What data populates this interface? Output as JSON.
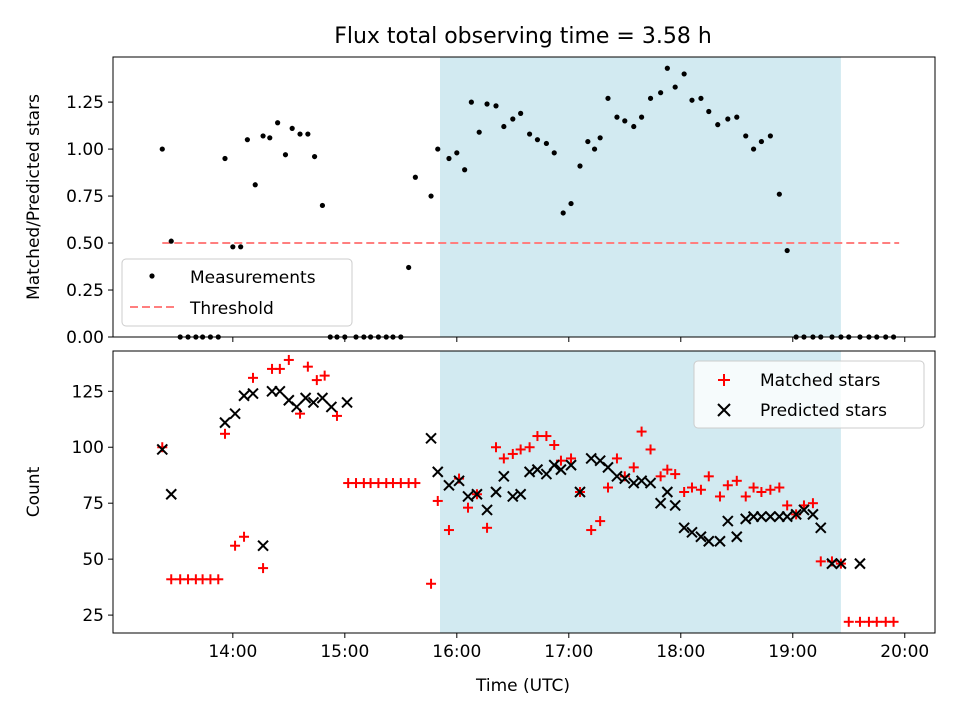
{
  "title": "Flux total observing time = 3.58 h",
  "highlight_window": {
    "start": 15.85,
    "end": 19.43,
    "color": "#add8e6"
  },
  "chart_data": [
    {
      "type": "scatter",
      "ylabel": "Matched/Predicted stars",
      "xlim": [
        12.93,
        20.27
      ],
      "ylim": [
        0.0,
        1.49
      ],
      "yticks": [
        0.0,
        0.25,
        0.5,
        0.75,
        1.0,
        1.25
      ],
      "ytick_labels": [
        "0.00",
        "0.25",
        "0.50",
        "0.75",
        "1.00",
        "1.25"
      ],
      "legend": {
        "position": "lower-left",
        "entries": [
          "Measurements",
          "Threshold"
        ]
      },
      "threshold": {
        "name": "Threshold",
        "value": 0.5,
        "x_range": [
          13.37,
          19.95
        ],
        "color": "#ff7f7f",
        "style": "dashed"
      },
      "series": [
        {
          "name": "Measurements",
          "marker": "dot",
          "color": "#000000",
          "x": [
            13.37,
            13.45,
            13.53,
            13.6,
            13.67,
            13.73,
            13.8,
            13.87,
            13.93,
            14.0,
            14.07,
            14.13,
            14.2,
            14.27,
            14.33,
            14.4,
            14.47,
            14.53,
            14.6,
            14.67,
            14.73,
            14.8,
            14.87,
            14.93,
            15.0,
            15.1,
            15.17,
            15.23,
            15.3,
            15.37,
            15.43,
            15.5,
            15.57,
            15.63,
            15.77,
            15.83,
            15.93,
            16.0,
            16.07,
            16.13,
            16.2,
            16.27,
            16.35,
            16.42,
            16.5,
            16.57,
            16.65,
            16.72,
            16.8,
            16.87,
            16.95,
            17.02,
            17.1,
            17.17,
            17.23,
            17.28,
            17.35,
            17.43,
            17.5,
            17.58,
            17.65,
            17.73,
            17.82,
            17.88,
            17.95,
            18.03,
            18.1,
            18.18,
            18.25,
            18.33,
            18.42,
            18.5,
            18.58,
            18.65,
            18.72,
            18.8,
            18.88,
            18.95,
            19.03,
            19.1,
            19.18,
            19.25,
            19.35,
            19.43,
            19.5,
            19.6,
            19.68,
            19.75,
            19.83,
            19.9
          ],
          "y": [
            1.0,
            0.51,
            0.0,
            0.0,
            0.0,
            0.0,
            0.0,
            0.0,
            0.95,
            0.48,
            0.48,
            1.05,
            0.81,
            1.07,
            1.06,
            1.14,
            0.97,
            1.11,
            1.08,
            1.08,
            0.96,
            0.7,
            0.0,
            0.0,
            0.0,
            0.0,
            0.0,
            0.0,
            0.0,
            0.0,
            0.0,
            0.0,
            0.37,
            0.85,
            0.75,
            1.0,
            0.95,
            0.98,
            0.89,
            1.25,
            1.09,
            1.24,
            1.23,
            1.12,
            1.16,
            1.19,
            1.08,
            1.05,
            1.03,
            0.98,
            0.66,
            0.71,
            0.91,
            1.04,
            1.0,
            1.06,
            1.27,
            1.17,
            1.15,
            1.12,
            1.17,
            1.27,
            1.3,
            1.43,
            1.33,
            1.4,
            1.26,
            1.27,
            1.2,
            1.13,
            1.16,
            1.17,
            1.07,
            1.0,
            1.04,
            1.07,
            0.76,
            0.46,
            0.0,
            0.0,
            0.0,
            0.0,
            0.0,
            0.0,
            0.0,
            0.0,
            0.0,
            0.0,
            0.0,
            0.0
          ]
        }
      ]
    },
    {
      "type": "scatter",
      "xlabel": "Time (UTC)",
      "ylabel": "Count",
      "xlim": [
        12.93,
        20.27
      ],
      "ylim": [
        17,
        143
      ],
      "yticks": [
        25,
        50,
        75,
        100,
        125
      ],
      "ytick_labels": [
        "25",
        "50",
        "75",
        "100",
        "125"
      ],
      "xticks": [
        14,
        15,
        16,
        17,
        18,
        19,
        20
      ],
      "xtick_labels": [
        "14:00",
        "15:00",
        "16:00",
        "17:00",
        "18:00",
        "19:00",
        "20:00"
      ],
      "legend": {
        "position": "top-right",
        "entries": [
          "Matched stars",
          "Predicted stars"
        ]
      },
      "series": [
        {
          "name": "Matched stars",
          "marker": "plus",
          "color": "#ff0000",
          "x": [
            13.37,
            13.45,
            13.53,
            13.6,
            13.67,
            13.73,
            13.8,
            13.87,
            13.93,
            14.02,
            14.1,
            14.18,
            14.27,
            14.35,
            14.42,
            14.5,
            14.6,
            14.67,
            14.75,
            14.82,
            14.93,
            15.03,
            15.1,
            15.17,
            15.23,
            15.3,
            15.37,
            15.43,
            15.5,
            15.57,
            15.63,
            15.77,
            15.83,
            15.93,
            16.02,
            16.1,
            16.18,
            16.27,
            16.35,
            16.42,
            16.5,
            16.57,
            16.65,
            16.72,
            16.8,
            16.87,
            16.93,
            17.02,
            17.1,
            17.2,
            17.28,
            17.35,
            17.43,
            17.5,
            17.58,
            17.65,
            17.73,
            17.82,
            17.88,
            17.95,
            18.03,
            18.1,
            18.18,
            18.25,
            18.35,
            18.42,
            18.5,
            18.58,
            18.65,
            18.72,
            18.8,
            18.88,
            18.95,
            19.03,
            19.1,
            19.18,
            19.25,
            19.35,
            19.43,
            19.5,
            19.6,
            19.68,
            19.75,
            19.83,
            19.9
          ],
          "y": [
            100,
            41,
            41,
            41,
            41,
            41,
            41,
            41,
            106,
            56,
            60,
            131,
            46,
            135,
            135,
            139,
            115,
            136,
            130,
            132,
            114,
            84,
            84,
            84,
            84,
            84,
            84,
            84,
            84,
            84,
            84,
            39,
            76,
            63,
            86,
            73,
            79,
            64,
            100,
            95,
            97,
            99,
            100,
            105,
            105,
            101,
            94,
            95,
            80,
            63,
            67,
            82,
            95,
            87,
            91,
            107,
            99,
            87,
            90,
            88,
            80,
            82,
            81,
            87,
            78,
            83,
            85,
            78,
            82,
            80,
            81,
            82,
            74,
            70,
            74,
            75,
            49,
            49,
            48,
            22,
            22,
            22,
            22,
            22,
            22
          ]
        },
        {
          "name": "Predicted stars",
          "marker": "x",
          "color": "#000000",
          "x": [
            13.37,
            13.45,
            13.93,
            14.02,
            14.1,
            14.18,
            14.27,
            14.35,
            14.42,
            14.5,
            14.57,
            14.65,
            14.72,
            14.8,
            14.88,
            15.02,
            15.77,
            15.83,
            15.93,
            16.02,
            16.1,
            16.18,
            16.27,
            16.35,
            16.42,
            16.5,
            16.57,
            16.65,
            16.72,
            16.8,
            16.87,
            16.93,
            17.02,
            17.1,
            17.2,
            17.28,
            17.35,
            17.43,
            17.5,
            17.58,
            17.65,
            17.73,
            17.82,
            17.88,
            17.95,
            18.03,
            18.1,
            18.18,
            18.25,
            18.35,
            18.42,
            18.5,
            18.58,
            18.65,
            18.72,
            18.8,
            18.88,
            18.95,
            19.03,
            19.1,
            19.18,
            19.25,
            19.35,
            19.43,
            19.6
          ],
          "y": [
            99,
            79,
            111,
            115,
            123,
            124,
            56,
            125,
            125,
            121,
            118,
            122,
            120,
            122,
            118,
            120,
            104,
            89,
            83,
            85,
            78,
            79,
            72,
            80,
            87,
            78,
            79,
            89,
            90,
            88,
            92,
            90,
            92,
            80,
            95,
            94,
            91,
            87,
            86,
            84,
            85,
            84,
            75,
            80,
            74,
            64,
            62,
            60,
            58,
            58,
            67,
            60,
            68,
            69,
            69,
            69,
            69,
            69,
            70,
            72,
            70,
            64,
            48,
            48,
            48
          ]
        }
      ]
    }
  ]
}
